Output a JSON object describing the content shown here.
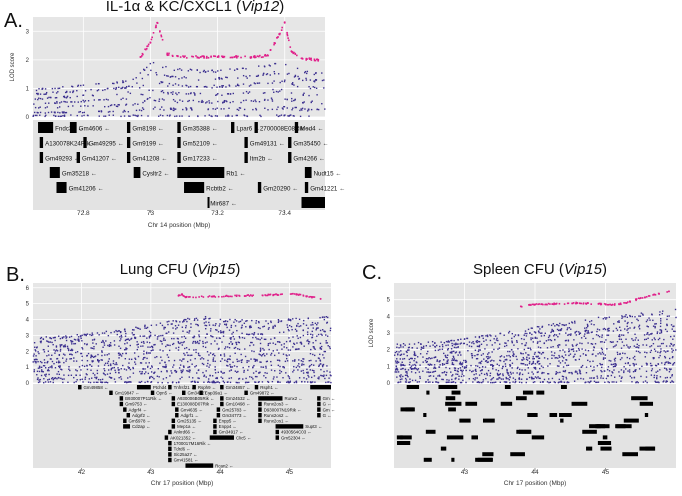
{
  "colors": {
    "plot_background": "#e6e6e6",
    "gene_background": "#e3e3e3",
    "snp_points": "#3b2f8f",
    "significant_points": "#e0208a",
    "gene_bar": "#000000"
  },
  "panels": [
    {
      "letter": "A.",
      "title_prefix": "IL-1α & KC/CXCL1 (",
      "title_strain": "Vip12",
      "title_suffix": ")"
    },
    {
      "letter": "B.",
      "title_prefix": "Lung CFU (",
      "title_strain": "Vip15",
      "title_suffix": ")"
    },
    {
      "letter": "C.",
      "title_prefix": "Spleen CFU (",
      "title_strain": "Vip15",
      "title_suffix": ")"
    }
  ],
  "chart_data": [
    {
      "type": "scatter",
      "title": "IL-1α & KC/CXCL1 (Vip12)",
      "xlabel": "Chr 14 position (Mbp)",
      "ylabel": "LOD score",
      "xlim": [
        72.65,
        73.52
      ],
      "ylim": [
        0,
        3.5
      ],
      "x_ticks": [
        72.8,
        73.0,
        73.2,
        73.4
      ],
      "y_ticks": [
        0,
        1,
        2,
        3
      ],
      "grid": true,
      "series": [
        {
          "name": "SNP LOD (non-significant)",
          "color": "#3b2f8f",
          "x": [
            72.66,
            72.7,
            72.75,
            72.8,
            72.85,
            72.9,
            72.95,
            73.0,
            73.05,
            73.1,
            73.15,
            73.2,
            73.25,
            73.3,
            73.35,
            73.4,
            73.45,
            73.5
          ],
          "values": [
            0.95,
            1.0,
            1.05,
            1.1,
            1.15,
            1.2,
            1.3,
            1.9,
            1.7,
            1.65,
            1.6,
            1.6,
            1.65,
            1.7,
            1.8,
            1.9,
            1.6,
            1.5
          ]
        },
        {
          "name": "SNP LOD (significant)",
          "color": "#e0208a",
          "x": [
            72.97,
            73.0,
            73.02,
            73.05,
            73.1,
            73.15,
            73.2,
            73.25,
            73.3,
            73.35,
            73.38,
            73.4,
            73.42,
            73.45,
            73.5
          ],
          "values": [
            2.1,
            2.6,
            3.3,
            2.2,
            2.1,
            2.1,
            2.1,
            2.1,
            2.1,
            2.15,
            2.8,
            3.3,
            2.3,
            2.05,
            2.0
          ]
        }
      ],
      "genes": [
        {
          "row": 0,
          "name": "Fndc3a",
          "start": 72.665,
          "end": 72.71
        },
        {
          "row": 0,
          "name": "Gm4606",
          "start": 72.76,
          "end": 72.78
        },
        {
          "row": 0,
          "name": "Gm8198",
          "start": 72.93,
          "end": 72.94
        },
        {
          "row": 0,
          "name": "Gm35388",
          "start": 73.08,
          "end": 73.09
        },
        {
          "row": 0,
          "name": "Lpar6",
          "start": 73.24,
          "end": 73.25
        },
        {
          "row": 0,
          "name": "2700008E08Rik",
          "start": 73.31,
          "end": 73.32
        },
        {
          "row": 0,
          "name": "Med4",
          "start": 73.43,
          "end": 73.44
        },
        {
          "row": 1,
          "name": "A130078K24Rik",
          "start": 72.67,
          "end": 72.68
        },
        {
          "row": 1,
          "name": "Gm49295",
          "start": 72.8,
          "end": 72.81
        },
        {
          "row": 1,
          "name": "Gm9199",
          "start": 72.93,
          "end": 72.94
        },
        {
          "row": 1,
          "name": "Gm52109",
          "start": 73.08,
          "end": 73.09
        },
        {
          "row": 1,
          "name": "Gm49131",
          "start": 73.28,
          "end": 73.29
        },
        {
          "row": 1,
          "name": "Gm35450",
          "start": 73.41,
          "end": 73.42
        },
        {
          "row": 2,
          "name": "Gm49293",
          "start": 72.67,
          "end": 72.68
        },
        {
          "row": 2,
          "name": "Gm41207",
          "start": 72.78,
          "end": 72.79
        },
        {
          "row": 2,
          "name": "Gm41208",
          "start": 72.93,
          "end": 72.94
        },
        {
          "row": 2,
          "name": "Gm17233",
          "start": 73.08,
          "end": 73.09
        },
        {
          "row": 2,
          "name": "Itm2b",
          "start": 73.28,
          "end": 73.29
        },
        {
          "row": 2,
          "name": "Gm4266",
          "start": 73.41,
          "end": 73.42
        },
        {
          "row": 3,
          "name": "Gm35218",
          "start": 72.7,
          "end": 72.73
        },
        {
          "row": 3,
          "name": "Cysltr2",
          "start": 72.95,
          "end": 72.97
        },
        {
          "row": 3,
          "name": "Rb1",
          "start": 73.08,
          "end": 73.22
        },
        {
          "row": 3,
          "name": "Nudt15",
          "start": 73.46,
          "end": 73.48
        },
        {
          "row": 4,
          "name": "Gm41206",
          "start": 72.72,
          "end": 72.75
        },
        {
          "row": 4,
          "name": "Rcbtb2",
          "start": 73.1,
          "end": 73.16
        },
        {
          "row": 4,
          "name": "Gm20290",
          "start": 73.32,
          "end": 73.33
        },
        {
          "row": 4,
          "name": "Gm41221",
          "start": 73.46,
          "end": 73.47
        },
        {
          "row": 5,
          "name": "Mir687",
          "start": 73.17,
          "end": 73.172
        },
        {
          "row": 5,
          "name": "",
          "start": 73.45,
          "end": 73.52
        }
      ]
    },
    {
      "type": "scatter",
      "title": "Lung CFU (Vip15)",
      "xlabel": "Chr 17 position (Mbp)",
      "ylabel": "",
      "xlim": [
        41.3,
        45.6
      ],
      "ylim": [
        0,
        6.3
      ],
      "x_ticks": [
        42,
        43,
        44,
        45
      ],
      "y_ticks": [
        0,
        1,
        2,
        3,
        4,
        5,
        6
      ],
      "grid": true,
      "series": [
        {
          "name": "SNP LOD (non-significant)",
          "color": "#3b2f8f",
          "x": [
            41.4,
            41.8,
            42.2,
            42.6,
            43.0,
            43.4,
            43.8,
            44.2,
            44.6,
            45.0,
            45.4
          ],
          "values": [
            2.8,
            2.9,
            3.1,
            3.3,
            3.6,
            3.9,
            4.1,
            3.9,
            3.8,
            4.0,
            4.1
          ]
        },
        {
          "name": "SNP LOD (significant)",
          "color": "#e0208a",
          "x": [
            43.4,
            43.45,
            43.5,
            45.1,
            45.45
          ],
          "values": [
            5.5,
            5.6,
            5.4,
            5.6,
            5.3
          ]
        }
      ],
      "genes": [
        {
          "row": 0,
          "name": "Gm49858",
          "start": 41.95,
          "end": 42.0
        },
        {
          "row": 0,
          "name": "Ptchd4",
          "start": 42.8,
          "end": 43.0
        },
        {
          "row": 0,
          "name": "Tnfrsf21",
          "start": 43.25,
          "end": 43.3
        },
        {
          "row": 0,
          "name": "Rsph9",
          "start": 43.6,
          "end": 43.65
        },
        {
          "row": 0,
          "name": "Gm34857",
          "start": 44.0,
          "end": 44.05
        },
        {
          "row": 0,
          "name": "Rsph1",
          "start": 44.5,
          "end": 44.55
        },
        {
          "row": 0,
          "name": "Gm38",
          "start": 45.3,
          "end": 45.6
        },
        {
          "row": 1,
          "name": "Gm19847",
          "start": 42.4,
          "end": 42.45
        },
        {
          "row": 1,
          "name": "Opn5",
          "start": 43.0,
          "end": 43.05
        },
        {
          "row": 1,
          "name": "Gm34627",
          "start": 43.45,
          "end": 43.5
        },
        {
          "row": 1,
          "name": "Cyp39a1",
          "start": 43.7,
          "end": 43.75
        },
        {
          "row": 1,
          "name": "Gm49872",
          "start": 44.35,
          "end": 44.4
        },
        {
          "row": 2,
          "name": "B930007P11Rik",
          "start": 42.55,
          "end": 42.6
        },
        {
          "row": 2,
          "name": "A930006B05Rik",
          "start": 43.3,
          "end": 43.35
        },
        {
          "row": 2,
          "name": "Gm24532",
          "start": 44.0,
          "end": 44.05
        },
        {
          "row": 2,
          "name": "Runx2",
          "start": 44.55,
          "end": 44.9
        },
        {
          "row": 2,
          "name": "Gm",
          "start": 45.4,
          "end": 45.45
        },
        {
          "row": 3,
          "name": "Gm9753",
          "start": 42.55,
          "end": 42.6
        },
        {
          "row": 3,
          "name": "E130008D07Rik",
          "start": 43.3,
          "end": 43.35
        },
        {
          "row": 3,
          "name": "Gm10498",
          "start": 44.0,
          "end": 44.05
        },
        {
          "row": 3,
          "name": "Runx2os3",
          "start": 44.55,
          "end": 44.6
        },
        {
          "row": 3,
          "name": "G",
          "start": 45.4,
          "end": 45.45
        },
        {
          "row": 4,
          "name": "Adgrf4",
          "start": 42.6,
          "end": 42.65
        },
        {
          "row": 4,
          "name": "Gm4635",
          "start": 43.35,
          "end": 43.4
        },
        {
          "row": 4,
          "name": "Gm25783",
          "start": 43.95,
          "end": 44.0
        },
        {
          "row": 4,
          "name": "D930007N19Rik",
          "start": 44.55,
          "end": 44.6
        },
        {
          "row": 4,
          "name": "Gm",
          "start": 45.4,
          "end": 45.45
        },
        {
          "row": 5,
          "name": "Adgrf2",
          "start": 42.65,
          "end": 42.7
        },
        {
          "row": 5,
          "name": "Adgrf1",
          "start": 43.35,
          "end": 43.4
        },
        {
          "row": 5,
          "name": "Gm34773",
          "start": 43.95,
          "end": 44.0
        },
        {
          "row": 5,
          "name": "Runx2os2",
          "start": 44.55,
          "end": 44.6
        },
        {
          "row": 5,
          "name": "G",
          "start": 45.4,
          "end": 45.45
        },
        {
          "row": 6,
          "name": "Gm5978",
          "start": 42.6,
          "end": 42.65
        },
        {
          "row": 6,
          "name": "Gm25135",
          "start": 43.3,
          "end": 43.35
        },
        {
          "row": 6,
          "name": "Enpp5",
          "start": 43.9,
          "end": 43.95
        },
        {
          "row": 6,
          "name": "Runx2os1",
          "start": 44.55,
          "end": 44.6
        },
        {
          "row": 7,
          "name": "Cd2ap",
          "start": 42.6,
          "end": 42.7
        },
        {
          "row": 7,
          "name": "Mep1a",
          "start": 43.3,
          "end": 43.35
        },
        {
          "row": 7,
          "name": "Enpp4",
          "start": 43.9,
          "end": 43.95
        },
        {
          "row": 7,
          "name": "Supt3",
          "start": 44.8,
          "end": 45.2
        },
        {
          "row": 8,
          "name": "Ankrd66",
          "start": 43.25,
          "end": 43.3
        },
        {
          "row": 8,
          "name": "Gm34917",
          "start": 43.9,
          "end": 43.95
        },
        {
          "row": 8,
          "name": "4930564C03",
          "start": 44.8,
          "end": 44.85
        },
        {
          "row": 9,
          "name": "AK021352",
          "start": 43.2,
          "end": 43.25
        },
        {
          "row": 9,
          "name": "Clic5",
          "start": 43.85,
          "end": 44.2
        },
        {
          "row": 9,
          "name": "Gm52304",
          "start": 44.8,
          "end": 44.85
        },
        {
          "row": 10,
          "name": "1700017M16Rik",
          "start": 43.25,
          "end": 43.3
        },
        {
          "row": 11,
          "name": "Tdrd6",
          "start": 43.25,
          "end": 43.3
        },
        {
          "row": 12,
          "name": "Slc25a27",
          "start": 43.25,
          "end": 43.3
        },
        {
          "row": 13,
          "name": "Gm41581",
          "start": 43.25,
          "end": 43.3
        },
        {
          "row": 14,
          "name": "Rcan2",
          "start": 43.5,
          "end": 43.9
        }
      ]
    },
    {
      "type": "scatter",
      "title": "Spleen CFU (Vip15)",
      "xlabel": "Chr 17 position (Mbp)",
      "ylabel": "LOD score",
      "xlim": [
        42.0,
        46.0
      ],
      "ylim": [
        0,
        6.0
      ],
      "x_ticks": [
        43,
        44,
        45
      ],
      "y_ticks": [
        0,
        1,
        2,
        3,
        4,
        5
      ],
      "grid": true,
      "series": [
        {
          "name": "SNP LOD (non-significant)",
          "color": "#3b2f8f",
          "x": [
            42.05,
            42.5,
            43.0,
            43.5,
            44.0,
            44.5,
            45.0,
            45.5,
            45.95
          ],
          "values": [
            2.3,
            2.4,
            2.6,
            2.9,
            3.3,
            3.6,
            3.9,
            4.1,
            4.3
          ]
        },
        {
          "name": "SNP LOD (significant)",
          "color": "#e0208a",
          "x": [
            43.8,
            44.0,
            44.3,
            44.6,
            44.9,
            45.1,
            45.3,
            45.5,
            45.7,
            45.9
          ],
          "values": [
            4.6,
            4.7,
            4.75,
            4.8,
            4.75,
            4.7,
            4.8,
            5.1,
            5.3,
            5.5
          ]
        }
      ],
      "genes": []
    }
  ]
}
